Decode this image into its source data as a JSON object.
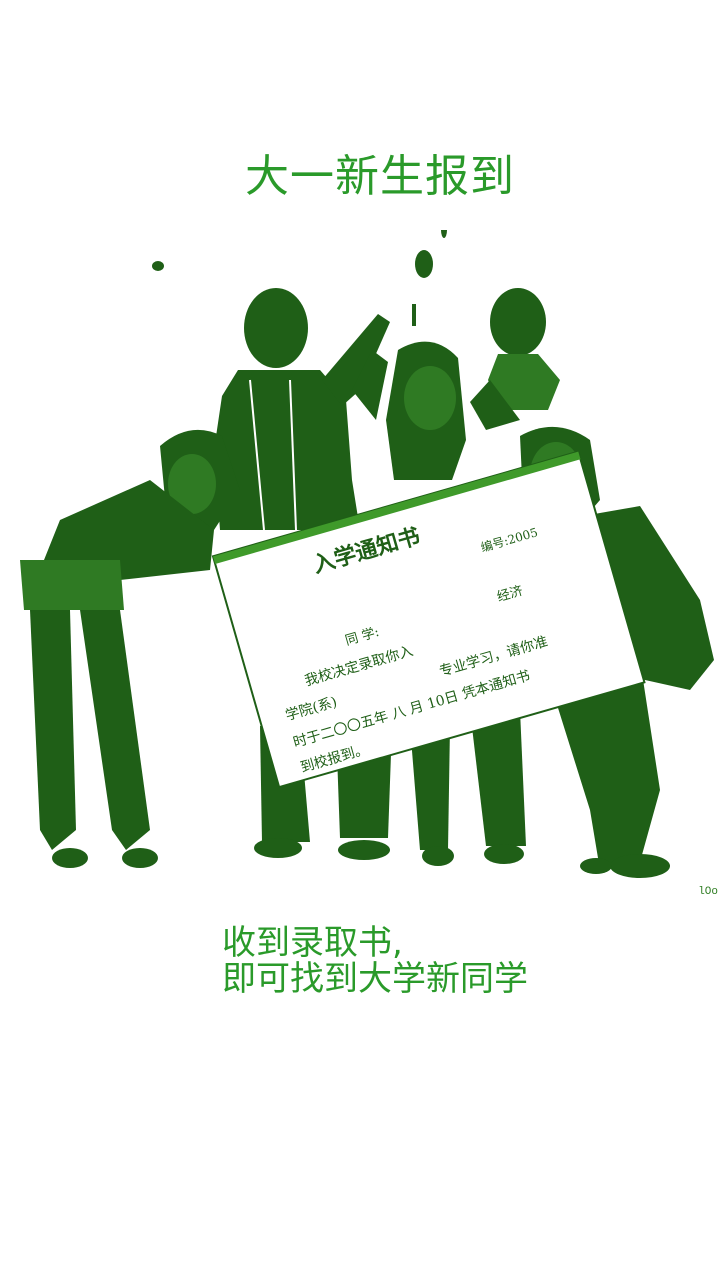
{
  "colors": {
    "accent": "#2a9a2a",
    "figure": "#1f5f17",
    "background": "#ffffff"
  },
  "title": "大一新生报到",
  "letter": {
    "heading": "入学通知书",
    "number": "编号:2005",
    "line1_left": "同  学:",
    "line1_right": "经济",
    "line2": "我校决定录取你入",
    "line3_left": "学院(系)",
    "line3_right": "专业学习，请你准",
    "line4": "时于二〇〇五年 八 月 10日 凭本通知书",
    "line5": "到校报到。"
  },
  "watermark": "lOo",
  "tagline": {
    "line1": "收到录取书,",
    "line2": "即可找到大学新同学"
  }
}
